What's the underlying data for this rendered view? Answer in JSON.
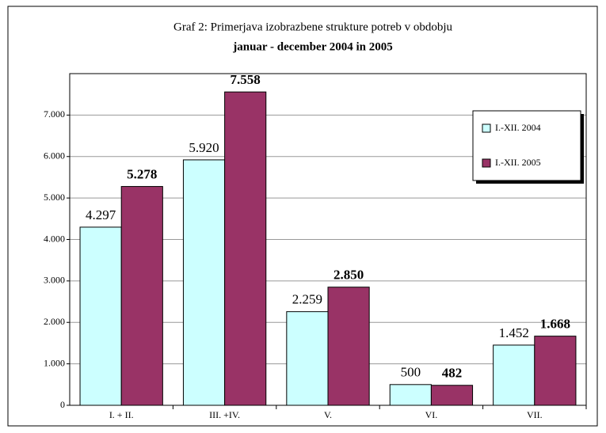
{
  "chart_data": {
    "type": "bar",
    "title": [
      "Graf 2: Primerjava izobrazbene strukture potreb v obdobju",
      "januar - december 2004 in 2005"
    ],
    "categories": [
      "I. + II.",
      "III. +IV.",
      "V.",
      "VI.",
      "VII."
    ],
    "series": [
      {
        "name": "I.-XII. 2004",
        "color": "#ccffff",
        "values": [
          4297,
          5920,
          2259,
          500,
          1452
        ],
        "value_labels": [
          "4.297",
          "5.920",
          "2.259",
          "500",
          "1.452"
        ]
      },
      {
        "name": "I.-XII. 2005",
        "color": "#993366",
        "values": [
          5278,
          7558,
          2850,
          482,
          1668
        ],
        "value_labels": [
          "5.278",
          "7.558",
          "2.850",
          "482",
          "1.668"
        ]
      }
    ],
    "ylim": [
      0,
      8000
    ],
    "yticks": [
      0,
      {
        "value": 1000,
        "label": "1.000"
      },
      {
        "value": 2000,
        "label": "2.000"
      },
      {
        "value": 3000,
        "label": "3.000"
      },
      {
        "value": 4000,
        "label": "4.000"
      },
      {
        "value": 5000,
        "label": "5.000"
      },
      {
        "value": 6000,
        "label": "6.000"
      },
      {
        "value": 7000,
        "label": "7.000"
      }
    ],
    "grid": true,
    "legend": "upper right"
  }
}
